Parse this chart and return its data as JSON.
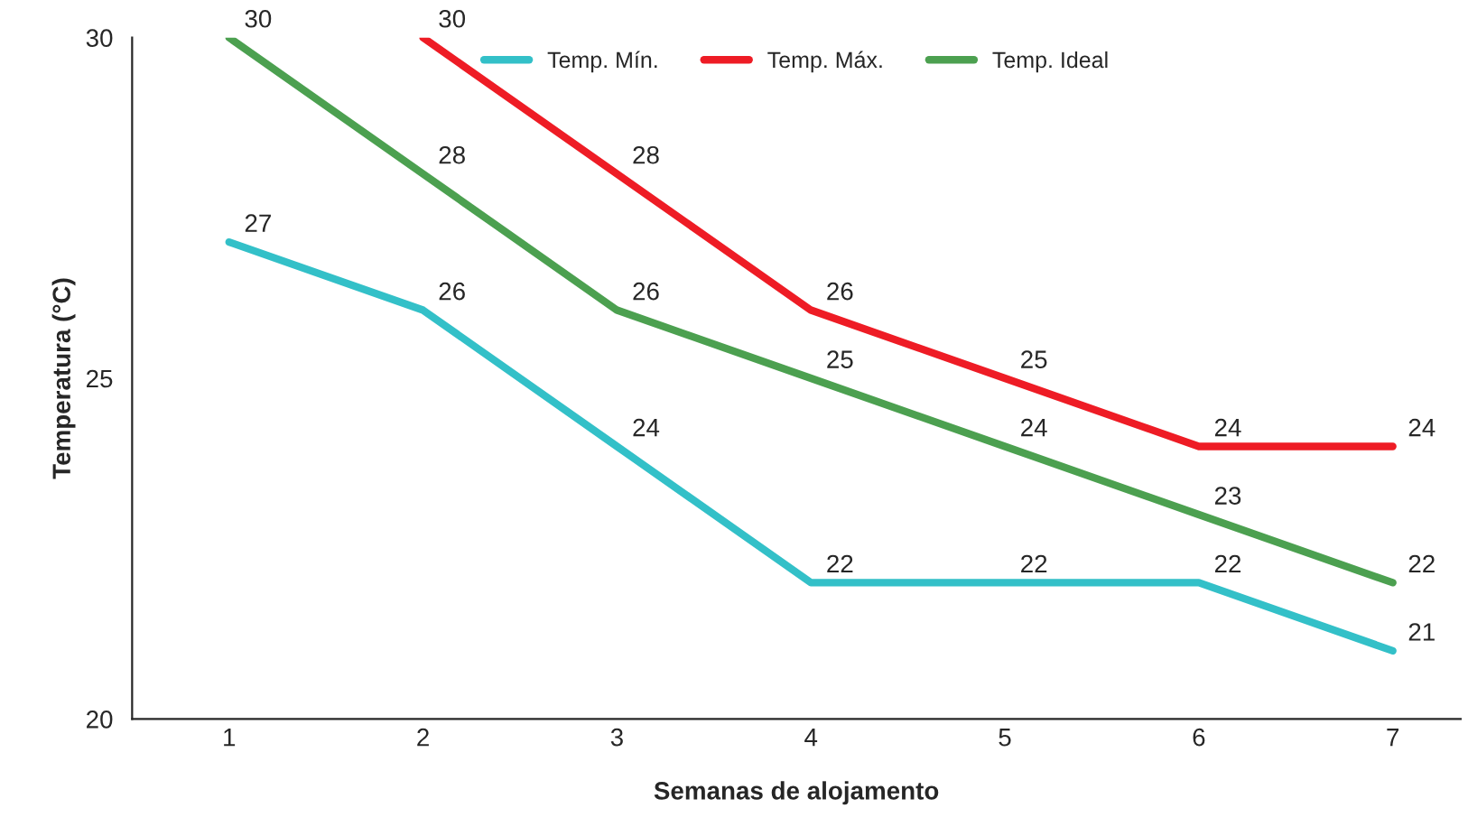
{
  "chart_data": {
    "type": "line",
    "xlabel": "Semanas de alojamento",
    "ylabel": "Temperatura (°C)",
    "categories": [
      "1",
      "2",
      "3",
      "4",
      "5",
      "6",
      "7"
    ],
    "series": [
      {
        "name": "Temp. Mín.",
        "color": "#33c0c8",
        "values": [
          27,
          26,
          24,
          22,
          22,
          22,
          21
        ]
      },
      {
        "name": "Temp. Máx.",
        "color": "#ee1c25",
        "values": [
          null,
          30,
          28,
          26,
          25,
          24,
          24
        ]
      },
      {
        "name": "Temp. Ideal",
        "color": "#4ca050",
        "values": [
          30,
          28,
          26,
          25,
          24,
          23,
          22
        ]
      }
    ],
    "ylim": [
      20,
      30
    ],
    "yticks": [
      20,
      25,
      30
    ],
    "data_labels": true,
    "legend": "top",
    "grid": false,
    "marker": "none",
    "line_style": "solid"
  }
}
